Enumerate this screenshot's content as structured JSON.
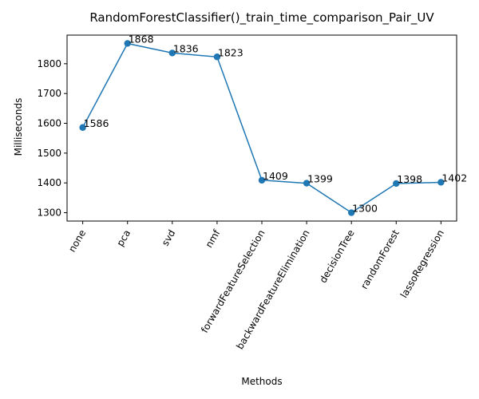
{
  "chart_data": {
    "type": "line",
    "title": "RandomForestClassifier()_train_time_comparison_Pair_UV",
    "xlabel": "Methods",
    "ylabel": "Milliseconds",
    "categories": [
      "none",
      "pca",
      "svd",
      "nmf",
      "forwardFeatureSelection",
      "backwardFeatureElimination",
      "decisionTree",
      "randomForest",
      "lassoRegression"
    ],
    "values": [
      1586,
      1868,
      1836,
      1823,
      1409,
      1399,
      1300,
      1398,
      1402
    ],
    "data_labels": [
      "1586",
      "1868",
      "1836",
      "1823",
      "1409",
      "1399",
      "1300",
      "1398",
      "1402"
    ],
    "ylim": [
      1272,
      1896
    ],
    "yticks": [
      1300,
      1400,
      1500,
      1600,
      1700,
      1800
    ],
    "ytick_labels": [
      "1300",
      "1400",
      "1500",
      "1600",
      "1700",
      "1800"
    ],
    "grid": false,
    "line_color": "#1f77b4",
    "marker": "circle"
  }
}
